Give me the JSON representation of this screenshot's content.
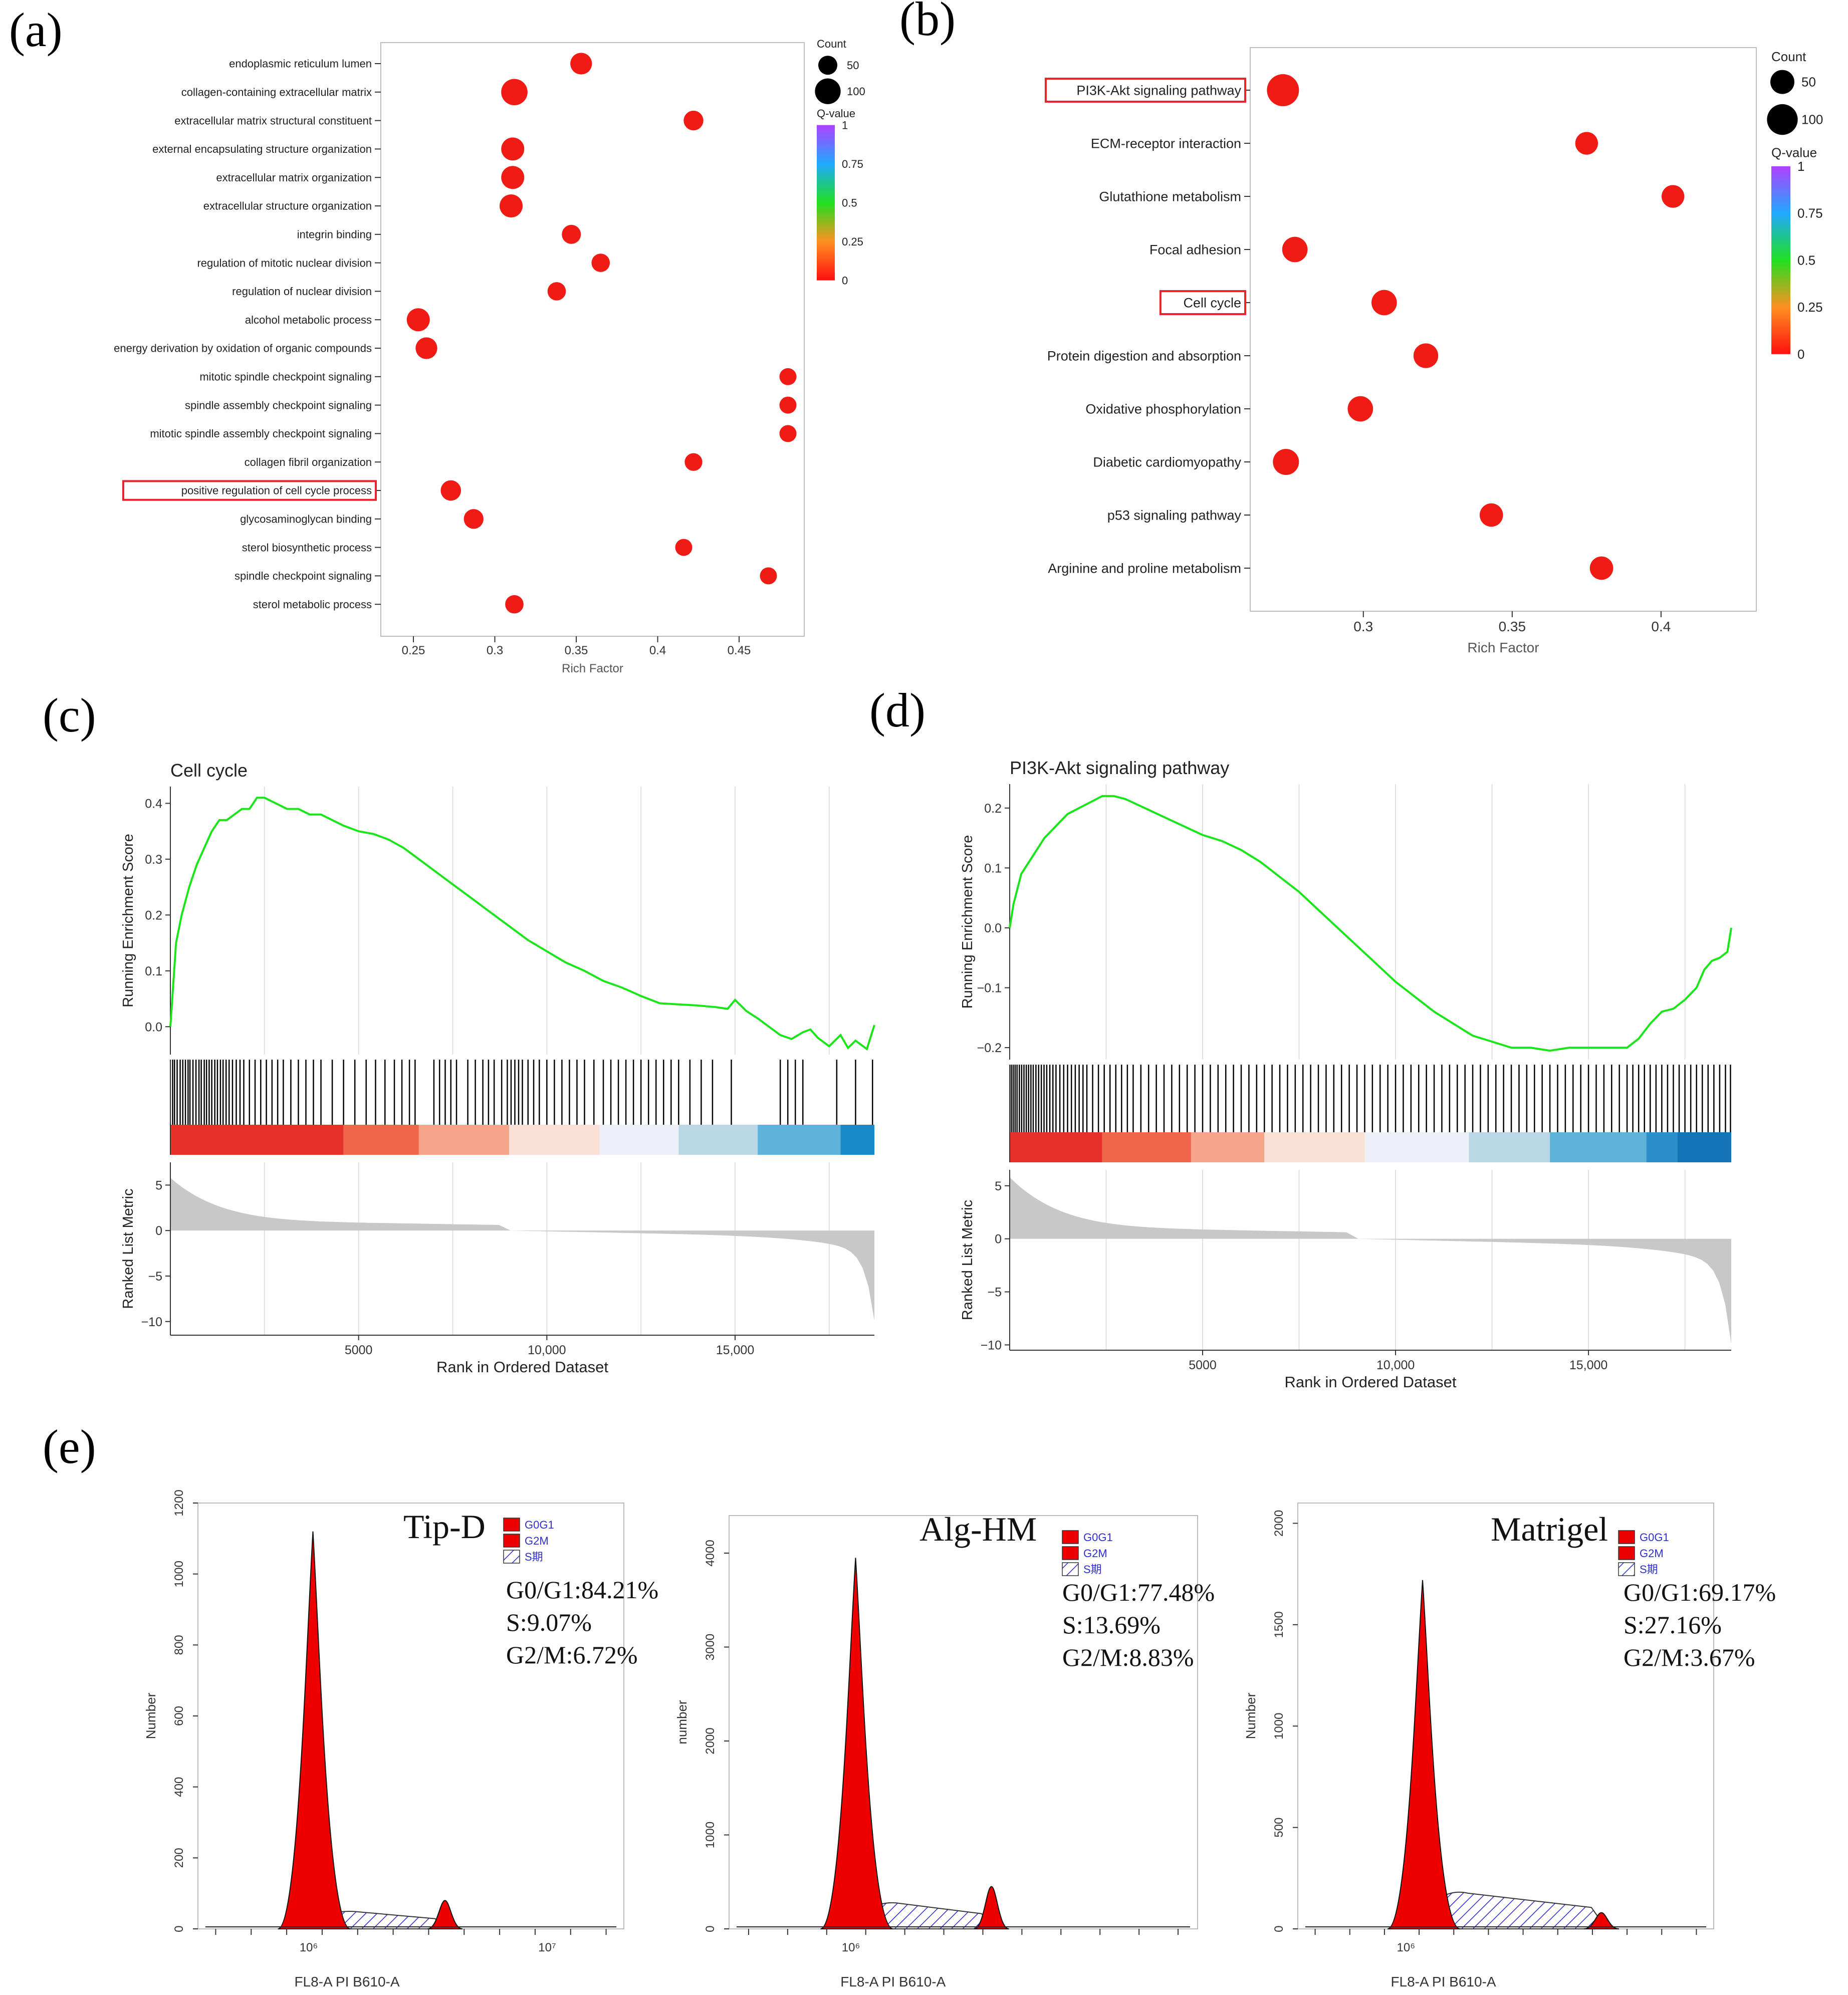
{
  "panel_labels": {
    "a": "(a)",
    "b": "(b)",
    "c": "(c)",
    "d": "(d)",
    "e": "(e)"
  },
  "colors": {
    "dot": "#f01b14",
    "highlight": "#e8232a",
    "gsea_line": "#19e619",
    "gsea_hits": "#000000",
    "metric_fill": "#c8c8c8",
    "hist_red": "#ee0000",
    "hatch": "#2a2ad8"
  },
  "chart_data": [
    {
      "id": "a",
      "type": "scatter",
      "xlabel": "Rich Factor",
      "xlim": [
        0.23,
        0.49
      ],
      "xticks": [
        0.25,
        0.3,
        0.35,
        0.4,
        0.45
      ],
      "xtick_labels": [
        "0.25",
        "0.3",
        "0.35",
        "0.4",
        "0.45"
      ],
      "highlighted": [
        "positive regulation of cell cycle process"
      ],
      "categories": [
        "endoplasmic reticulum lumen",
        "collagen-containing extracellular matrix",
        "extracellular matrix structural constituent",
        "external encapsulating structure organization",
        "extracellular matrix organization",
        "extracellular structure organization",
        "integrin binding",
        "regulation of mitotic nuclear division",
        "regulation of nuclear division",
        "alcohol metabolic process",
        "energy derivation by oxidation of organic compounds",
        "mitotic spindle checkpoint signaling",
        "spindle assembly checkpoint signaling",
        "mitotic spindle assembly checkpoint signaling",
        "collagen fibril organization",
        "positive regulation of cell cycle process",
        "glycosaminoglycan binding",
        "sterol biosynthetic process",
        "spindle checkpoint signaling",
        "sterol metabolic process"
      ],
      "x": [
        0.353,
        0.312,
        0.422,
        0.311,
        0.311,
        0.31,
        0.347,
        0.365,
        0.338,
        0.253,
        0.258,
        0.48,
        0.48,
        0.48,
        0.422,
        0.273,
        0.287,
        0.416,
        0.468,
        0.312
      ],
      "count": [
        70,
        105,
        55,
        80,
        80,
        80,
        50,
        45,
        45,
        80,
        70,
        35,
        35,
        35,
        40,
        60,
        55,
        35,
        35,
        45
      ],
      "size_legend": {
        "title": "Count",
        "values": [
          50,
          100
        ],
        "labels": [
          "50",
          "100"
        ]
      },
      "color_legend": {
        "title": "Q-value",
        "ticks": [
          1,
          0.75,
          0.5,
          0.25,
          0
        ],
        "labels": [
          "1",
          "0.75",
          "0.5",
          "0.25",
          "0"
        ]
      }
    },
    {
      "id": "b",
      "type": "scatter",
      "xlabel": "Rich Factor",
      "xlim": [
        0.262,
        0.432
      ],
      "xticks": [
        0.3,
        0.35,
        0.4
      ],
      "xtick_labels": [
        "0.3",
        "0.35",
        "0.4"
      ],
      "highlighted": [
        "PI3K-Akt signaling pathway",
        "Cell cycle"
      ],
      "categories": [
        "PI3K-Akt signaling pathway",
        "ECM-receptor interaction",
        "Glutathione metabolism",
        "Focal adhesion",
        "Cell cycle",
        "Protein digestion and absorption",
        "Oxidative phosphorylation",
        "Diabetic cardiomyopathy",
        "p53 signaling pathway",
        "Arginine and proline metabolism"
      ],
      "x": [
        0.273,
        0.375,
        0.404,
        0.277,
        0.307,
        0.321,
        0.299,
        0.274,
        0.343,
        0.38
      ],
      "count": [
        110,
        40,
        40,
        60,
        60,
        55,
        60,
        65,
        45,
        45
      ],
      "size_legend": {
        "title": "Count",
        "values": [
          50,
          100
        ],
        "labels": [
          "50",
          "100"
        ]
      },
      "color_legend": {
        "title": "Q-value",
        "ticks": [
          1,
          0.75,
          0.5,
          0.25,
          0
        ],
        "labels": [
          "1",
          "0.75",
          "0.5",
          "0.25",
          "0"
        ]
      }
    },
    {
      "id": "c",
      "type": "line",
      "title": "Cell cycle",
      "ylabel": "Running Enrichment Score",
      "ylabel2": "Ranked List Metric",
      "xlabel": "Rank in Ordered Dataset",
      "xlim": [
        0,
        18700
      ],
      "ylim": [
        -0.05,
        0.43
      ],
      "yticks": [
        0.0,
        0.1,
        0.2,
        0.3,
        0.4
      ],
      "ytick_labels": [
        "0.0",
        "0.1",
        "0.2",
        "0.3",
        "0.4"
      ],
      "metric_ylim": [
        -11.5,
        7.5
      ],
      "metric_yticks": [
        5,
        0,
        -5,
        -10
      ],
      "metric_ytick_labels": [
        "5",
        "0",
        "−5",
        "−10"
      ],
      "xticks": [
        5000,
        10000,
        15000
      ],
      "xtick_labels": [
        "5000",
        "10,000",
        "15,000"
      ],
      "x": [
        0,
        50,
        150,
        300,
        500,
        700,
        900,
        1100,
        1300,
        1500,
        1700,
        1900,
        2100,
        2300,
        2500,
        2800,
        3100,
        3400,
        3700,
        4000,
        4300,
        4600,
        5000,
        5400,
        5800,
        6200,
        6600,
        7000,
        7500,
        8000,
        8500,
        9000,
        9500,
        10000,
        10500,
        11000,
        11500,
        12000,
        12500,
        13000,
        13500,
        14000,
        14500,
        14800,
        15000,
        15300,
        15600,
        15900,
        16200,
        16500,
        16800,
        17000,
        17200,
        17500,
        17800,
        18000,
        18200,
        18500,
        18700
      ],
      "values": [
        0.0,
        0.05,
        0.15,
        0.2,
        0.25,
        0.29,
        0.32,
        0.35,
        0.37,
        0.37,
        0.38,
        0.39,
        0.39,
        0.41,
        0.41,
        0.4,
        0.39,
        0.39,
        0.38,
        0.38,
        0.37,
        0.36,
        0.35,
        0.345,
        0.335,
        0.32,
        0.3,
        0.28,
        0.255,
        0.23,
        0.205,
        0.18,
        0.155,
        0.135,
        0.115,
        0.1,
        0.082,
        0.07,
        0.055,
        0.042,
        0.04,
        0.038,
        0.035,
        0.032,
        0.048,
        0.028,
        0.015,
        0.0,
        -0.015,
        -0.022,
        -0.01,
        -0.005,
        -0.02,
        -0.035,
        -0.015,
        -0.038,
        -0.025,
        -0.04,
        0.003
      ],
      "hits": [
        60,
        110,
        180,
        260,
        330,
        400,
        470,
        520,
        600,
        680,
        760,
        820,
        900,
        960,
        1030,
        1100,
        1180,
        1250,
        1330,
        1400,
        1480,
        1560,
        1650,
        1750,
        1850,
        1950,
        2100,
        2250,
        2400,
        2550,
        2700,
        2850,
        3000,
        3200,
        3400,
        3600,
        3800,
        4000,
        4300,
        4600,
        4900,
        5200,
        5450,
        5700,
        5950,
        6150,
        6350,
        6500,
        7000,
        7150,
        7300,
        7450,
        7600,
        7900,
        8100,
        8300,
        8450,
        8600,
        8800,
        8950,
        9050,
        9150,
        9250,
        9350,
        9500,
        9650,
        9800,
        10000,
        10200,
        10400,
        10600,
        10800,
        11000,
        11250,
        11500,
        11700,
        11900,
        12100,
        12300,
        12500,
        12700,
        12900,
        13100,
        13300,
        13500,
        13800,
        14100,
        14400,
        14900,
        16200,
        16400,
        16600,
        16800,
        17700,
        18200,
        18650
      ],
      "bands": [
        "#e8302b",
        "#f0664a",
        "#f7a58a",
        "#fbe0d5",
        "#eef0f7",
        "#bad7e6",
        "#5fb3da",
        "#1788c8"
      ],
      "band_breaks": [
        0,
        4600,
        6600,
        9000,
        11400,
        13500,
        15600,
        17800,
        18700
      ]
    },
    {
      "id": "d",
      "type": "line",
      "title": "PI3K-Akt signaling pathway",
      "ylabel": "Running Enrichment Score",
      "ylabel2": "Ranked List Metric",
      "xlabel": "Rank in Ordered Dataset",
      "xlim": [
        0,
        18700
      ],
      "ylim": [
        -0.22,
        0.24
      ],
      "yticks": [
        0.2,
        0.1,
        0.0,
        -0.1,
        -0.2
      ],
      "ytick_labels": [
        "0.2",
        "0.1",
        "0.0",
        "−0.1",
        "−0.2"
      ],
      "metric_ylim": [
        -10.5,
        6.5
      ],
      "metric_yticks": [
        5,
        0,
        -5,
        -10
      ],
      "metric_ytick_labels": [
        "5",
        "0",
        "−5",
        "−10"
      ],
      "xticks": [
        5000,
        10000,
        15000
      ],
      "xtick_labels": [
        "5000",
        "10,000",
        "15,000"
      ],
      "x": [
        0,
        100,
        300,
        600,
        900,
        1200,
        1500,
        1800,
        2100,
        2400,
        2700,
        3000,
        3500,
        4000,
        4500,
        5000,
        5500,
        6000,
        6500,
        7000,
        7500,
        8000,
        8500,
        9000,
        9500,
        10000,
        10500,
        11000,
        11500,
        12000,
        12500,
        13000,
        13500,
        14000,
        14500,
        15000,
        15500,
        16000,
        16300,
        16600,
        16900,
        17200,
        17500,
        17800,
        18000,
        18200,
        18400,
        18600,
        18700
      ],
      "values": [
        0.0,
        0.04,
        0.09,
        0.12,
        0.15,
        0.17,
        0.19,
        0.2,
        0.21,
        0.22,
        0.22,
        0.215,
        0.2,
        0.185,
        0.17,
        0.155,
        0.145,
        0.13,
        0.11,
        0.085,
        0.06,
        0.03,
        0.0,
        -0.03,
        -0.06,
        -0.09,
        -0.115,
        -0.14,
        -0.16,
        -0.18,
        -0.19,
        -0.2,
        -0.2,
        -0.205,
        -0.2,
        -0.2,
        -0.2,
        -0.2,
        -0.185,
        -0.16,
        -0.14,
        -0.135,
        -0.12,
        -0.1,
        -0.07,
        -0.055,
        -0.05,
        -0.04,
        0.0
      ],
      "hits": [
        40,
        90,
        140,
        190,
        250,
        310,
        370,
        430,
        490,
        550,
        610,
        680,
        750,
        820,
        890,
        960,
        1040,
        1120,
        1200,
        1300,
        1400,
        1500,
        1600,
        1700,
        1800,
        1900,
        2000,
        2150,
        2300,
        2450,
        2600,
        2750,
        2900,
        3050,
        3200,
        3400,
        3600,
        3800,
        4000,
        4200,
        4400,
        4600,
        4800,
        5000,
        5200,
        5400,
        5600,
        5800,
        6000,
        6200,
        6400,
        6600,
        6800,
        7000,
        7200,
        7400,
        7600,
        7800,
        8000,
        8200,
        8400,
        8600,
        8800,
        9000,
        9200,
        9400,
        9600,
        9800,
        10000,
        10200,
        10400,
        10600,
        10800,
        11000,
        11200,
        11400,
        11600,
        11800,
        12000,
        12200,
        12400,
        12600,
        12800,
        13000,
        13200,
        13400,
        13600,
        13800,
        14000,
        14200,
        14400,
        14600,
        14800,
        15000,
        15200,
        15400,
        15600,
        15800,
        16000,
        16150,
        16300,
        16450,
        16600,
        16750,
        16900,
        17050,
        17200,
        17350,
        17500,
        17650,
        17800,
        17950,
        18100,
        18250,
        18400,
        18550,
        18680
      ],
      "bands": [
        "#e8302b",
        "#f0664a",
        "#f7a58a",
        "#fbe0d5",
        "#eef0f7",
        "#bad7e6",
        "#5fb3da",
        "#2b8fcb",
        "#1374b7"
      ],
      "band_breaks": [
        0,
        2400,
        4700,
        6600,
        9200,
        11900,
        14000,
        16500,
        17300,
        18700
      ]
    }
  ],
  "flow": {
    "xaxis_label": "FL8-A PI B610-A",
    "legend": [
      "G0G1",
      "G2M",
      "S期"
    ],
    "panels": [
      {
        "title": "Tip-D",
        "ylabel": "Number",
        "g0g1": "G0/G1:84.21%",
        "s": "S:9.07%",
        "g2m": "G2/M:6.72%",
        "yticks": [
          0,
          200,
          400,
          600,
          800,
          1000,
          1200
        ],
        "ymax": 1200,
        "g1_height": 1120,
        "g2_height": 80,
        "xtick_labels": [
          "10⁶",
          "10⁷"
        ]
      },
      {
        "title": "Alg-HM",
        "ylabel": "number",
        "g0g1": "G0/G1:77.48%",
        "s": "S:13.69%",
        "g2m": "G2/M:8.83%",
        "yticks": [
          0,
          1000,
          2000,
          3000,
          4000
        ],
        "ymax": 4400,
        "g1_height": 3950,
        "g2_height": 450,
        "xtick_labels": [
          "10⁶"
        ]
      },
      {
        "title": "Matrigel",
        "ylabel": "Number",
        "g0g1": "G0/G1:69.17%",
        "s": "S:27.16%",
        "g2m": "G2/M:3.67%",
        "yticks": [
          0,
          500,
          1000,
          1500,
          2000
        ],
        "ymax": 2100,
        "g1_height": 1720,
        "g2_height": 80,
        "xtick_labels": [
          "10⁶"
        ]
      }
    ]
  }
}
